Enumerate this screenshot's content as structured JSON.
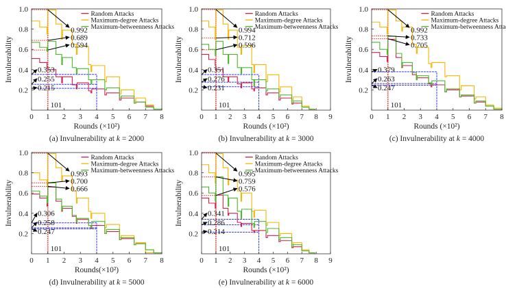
{
  "chart_data": [
    {
      "type": "line",
      "caption_prefix": "(a) Invulnerability at ",
      "caption_var": "k",
      "caption_value": " = 2000",
      "xlabel": "Rounds (×10²)",
      "ylabel": "Invulnerability",
      "xlim": [
        0,
        8
      ],
      "ylim": [
        0,
        1
      ],
      "xticks": [
        "0",
        "1",
        "2",
        "3",
        "4",
        "5",
        "6",
        "7",
        "8"
      ],
      "yticks": [
        "0.2",
        "0.4",
        "0.6",
        "0.8",
        "1.0"
      ],
      "grid": false,
      "legend_position": "top-right",
      "x": [
        0,
        0.5,
        0.95,
        1.0,
        1.5,
        1.85,
        1.9,
        2.5,
        2.75,
        2.8,
        3.5,
        3.65,
        3.7,
        4.5,
        4.6,
        5.4,
        5.5,
        6.3,
        6.4,
        7,
        7.5,
        8
      ],
      "series": [
        {
          "name": "Random Attacks",
          "color": "#d41f4a",
          "values": [
            0.51,
            0.47,
            0.42,
            0.4,
            0.33,
            0.27,
            0.33,
            0.25,
            0.21,
            0.27,
            0.19,
            0.17,
            0.21,
            0.15,
            0.17,
            0.1,
            0.12,
            0.07,
            0.08,
            0.04,
            0.01,
            0.02
          ]
        },
        {
          "name": "Maximum-degree Attacks",
          "color": "#f7b500",
          "values": [
            0.88,
            0.82,
            0.75,
            0.99,
            0.85,
            0.7,
            0.79,
            0.65,
            0.55,
            0.63,
            0.45,
            0.38,
            0.44,
            0.28,
            0.33,
            0.16,
            0.2,
            0.09,
            0.12,
            0.05,
            0.01,
            0.0
          ]
        },
        {
          "name": "Maximum-betweenness Attacks",
          "color": "#4cb82c",
          "values": [
            0.67,
            0.62,
            0.58,
            0.68,
            0.55,
            0.45,
            0.52,
            0.42,
            0.36,
            0.41,
            0.3,
            0.26,
            0.3,
            0.2,
            0.22,
            0.12,
            0.14,
            0.07,
            0.08,
            0.03,
            0.01,
            0.0
          ]
        }
      ],
      "annotations": {
        "top_values": [
          "0.992",
          "0.689",
          "0.594"
        ],
        "bottom_values": [
          "0.353",
          "0.255",
          "0.215"
        ],
        "marker_label": "101",
        "marker_x": 1,
        "window_x": 4
      }
    },
    {
      "type": "line",
      "caption_prefix": "(b) Invulnerability at ",
      "caption_var": "k",
      "caption_value": " = 3000",
      "xlabel": "Rounds (×10²)",
      "ylabel": "Invulnerability",
      "xlim": [
        0,
        9
      ],
      "ylim": [
        0,
        1
      ],
      "xticks": [
        "0",
        "1",
        "2",
        "3",
        "4",
        "5",
        "6",
        "7",
        "8",
        "9"
      ],
      "yticks": [
        "0.2",
        "0.4",
        "0.6",
        "0.8",
        "1.0"
      ],
      "grid": false,
      "legend_position": "top-right",
      "x": [
        0,
        0.5,
        0.95,
        1.0,
        1.5,
        1.85,
        1.9,
        2.5,
        2.75,
        2.8,
        3.5,
        3.65,
        3.7,
        4.5,
        4.6,
        5.4,
        5.5,
        6.3,
        6.4,
        7,
        7.5,
        7.9
      ],
      "series": [
        {
          "name": "Random Attacks",
          "color": "#d41f4a",
          "values": [
            0.55,
            0.5,
            0.44,
            0.4,
            0.33,
            0.28,
            0.33,
            0.26,
            0.22,
            0.27,
            0.21,
            0.19,
            0.22,
            0.15,
            0.17,
            0.1,
            0.12,
            0.06,
            0.07,
            0.03,
            0.01,
            0.0
          ]
        },
        {
          "name": "Maximum-degree Attacks",
          "color": "#f7b500",
          "values": [
            0.88,
            0.82,
            0.7,
            0.99,
            0.85,
            0.7,
            0.79,
            0.62,
            0.55,
            0.64,
            0.45,
            0.37,
            0.45,
            0.28,
            0.35,
            0.18,
            0.23,
            0.1,
            0.13,
            0.04,
            0.01,
            0.0
          ]
        },
        {
          "name": "Maximum-betweenness Attacks",
          "color": "#4cb82c",
          "values": [
            0.65,
            0.6,
            0.54,
            0.68,
            0.55,
            0.46,
            0.55,
            0.42,
            0.36,
            0.42,
            0.3,
            0.24,
            0.3,
            0.19,
            0.21,
            0.13,
            0.15,
            0.07,
            0.09,
            0.03,
            0.01,
            0.0
          ]
        }
      ],
      "annotations": {
        "top_values": [
          "0.994",
          "0.712",
          "0.596"
        ],
        "bottom_values": [
          "0.351",
          "0.276",
          "0.231"
        ],
        "marker_label": "101",
        "marker_x": 1,
        "window_x": 4
      }
    },
    {
      "type": "line",
      "caption_prefix": "(c) Invulnerability at ",
      "caption_var": "k",
      "caption_value": " = 4000",
      "xlabel": "Rounds (×10²)",
      "ylabel": "Invulnerability",
      "xlim": [
        0,
        8
      ],
      "ylim": [
        0,
        1
      ],
      "xticks": [
        "0",
        "1",
        "2",
        "3",
        "4",
        "5",
        "6",
        "7",
        "8"
      ],
      "yticks": [
        "0.2",
        "0.4",
        "0.6",
        "0.8",
        "1.0"
      ],
      "grid": false,
      "legend_position": "top-right",
      "x": [
        0,
        0.5,
        0.95,
        1.0,
        1.5,
        1.85,
        1.9,
        2.5,
        2.75,
        2.8,
        3.5,
        3.65,
        3.7,
        4.5,
        4.6,
        5.4,
        5.5,
        6.3,
        6.4,
        7,
        7.5,
        8
      ],
      "series": [
        {
          "name": "Random Attacks",
          "color": "#d41f4a",
          "values": [
            0.57,
            0.53,
            0.48,
            0.7,
            0.52,
            0.42,
            0.44,
            0.35,
            0.3,
            0.32,
            0.26,
            0.23,
            0.25,
            0.18,
            0.2,
            0.13,
            0.14,
            0.07,
            0.08,
            0.04,
            0.01,
            0.0
          ]
        },
        {
          "name": "Maximum-degree Attacks",
          "color": "#f7b500",
          "values": [
            0.87,
            0.82,
            0.75,
            0.99,
            0.88,
            0.78,
            0.82,
            0.65,
            0.56,
            0.62,
            0.46,
            0.42,
            0.47,
            0.33,
            0.34,
            0.2,
            0.24,
            0.11,
            0.13,
            0.05,
            0.02,
            0.0
          ]
        },
        {
          "name": "Maximum-betweenness Attacks",
          "color": "#4cb82c",
          "values": [
            0.67,
            0.6,
            0.55,
            0.73,
            0.56,
            0.43,
            0.47,
            0.37,
            0.3,
            0.34,
            0.27,
            0.25,
            0.29,
            0.18,
            0.21,
            0.13,
            0.15,
            0.07,
            0.09,
            0.04,
            0.01,
            0.0
          ]
        }
      ],
      "annotations": {
        "top_values": [
          "0.992",
          "0.733",
          "0.705"
        ],
        "bottom_values": [
          "0.379",
          "0.263",
          "0.247"
        ],
        "marker_label": "101",
        "marker_x": 1,
        "window_x": 4
      }
    },
    {
      "type": "line",
      "caption_prefix": "(d) Invulnerability at ",
      "caption_var": "k",
      "caption_value": " = 5000",
      "xlabel": "Rounds(×10²)",
      "ylabel": "Invulnerability",
      "xlim": [
        0,
        8
      ],
      "ylim": [
        0,
        1
      ],
      "xticks": [
        "0",
        "1",
        "2",
        "3",
        "4",
        "5",
        "6",
        "7",
        "8"
      ],
      "yticks": [
        "0.2",
        "0.4",
        "0.6",
        "0.8",
        "1.0"
      ],
      "grid": false,
      "legend_position": "top-right",
      "x": [
        0,
        0.5,
        0.95,
        1.0,
        1.5,
        1.85,
        1.9,
        2.5,
        2.75,
        2.8,
        3.5,
        3.65,
        3.7,
        4.5,
        4.6,
        5.4,
        5.5,
        6.3,
        6.4,
        7,
        7.5,
        8
      ],
      "series": [
        {
          "name": "Random Attacks",
          "color": "#d41f4a",
          "values": [
            0.59,
            0.55,
            0.47,
            0.66,
            0.52,
            0.42,
            0.45,
            0.37,
            0.3,
            0.34,
            0.28,
            0.25,
            0.28,
            0.2,
            0.22,
            0.14,
            0.15,
            0.09,
            0.1,
            0.04,
            0.01,
            0.0
          ]
        },
        {
          "name": "Maximum-degree Attacks",
          "color": "#f7b500",
          "values": [
            0.8,
            0.73,
            0.68,
            0.99,
            0.85,
            0.72,
            0.77,
            0.62,
            0.5,
            0.55,
            0.42,
            0.35,
            0.4,
            0.26,
            0.29,
            0.16,
            0.18,
            0.09,
            0.11,
            0.01,
            0.01,
            0.0
          ]
        },
        {
          "name": "Maximum-betweenness Attacks",
          "color": "#4cb82c",
          "values": [
            0.62,
            0.57,
            0.5,
            0.7,
            0.54,
            0.43,
            0.47,
            0.38,
            0.31,
            0.35,
            0.28,
            0.26,
            0.32,
            0.2,
            0.24,
            0.14,
            0.16,
            0.09,
            0.1,
            0.04,
            0.01,
            0.0
          ]
        }
      ],
      "annotations": {
        "top_values": [
          "0.993",
          "0.700",
          "0.666"
        ],
        "bottom_values": [
          "0.306",
          "0.258",
          "0.247"
        ],
        "marker_label": "101",
        "marker_x": 1,
        "window_x": 4
      }
    },
    {
      "type": "line",
      "caption_prefix": "(e) Invulnerability at ",
      "caption_var": "k",
      "caption_value": " = 6000",
      "xlabel": "Rounds (×10²)",
      "ylabel": "Invulnerability",
      "xlim": [
        0,
        9
      ],
      "ylim": [
        0,
        1
      ],
      "xticks": [
        "0",
        "1",
        "2",
        "3",
        "4",
        "5",
        "6",
        "7",
        "8",
        "9"
      ],
      "yticks": [
        "0.2",
        "0.4",
        "0.6",
        "0.8",
        "1.0"
      ],
      "grid": false,
      "legend_position": "top-right",
      "x": [
        0,
        0.5,
        0.95,
        1.0,
        1.5,
        1.85,
        1.9,
        2.5,
        2.75,
        2.8,
        3.5,
        3.65,
        3.7,
        4.5,
        4.6,
        5.4,
        5.5,
        6.3,
        6.4,
        7,
        7.5,
        7.9
      ],
      "series": [
        {
          "name": "Random Attacks",
          "color": "#d41f4a",
          "values": [
            0.55,
            0.5,
            0.45,
            0.58,
            0.45,
            0.38,
            0.4,
            0.31,
            0.27,
            0.3,
            0.23,
            0.21,
            0.23,
            0.16,
            0.18,
            0.12,
            0.13,
            0.06,
            0.07,
            0.03,
            0.01,
            0.0
          ]
        },
        {
          "name": "Maximum-degree Attacks",
          "color": "#f7b500",
          "values": [
            0.88,
            0.8,
            0.7,
            0.99,
            0.85,
            0.68,
            0.73,
            0.62,
            0.52,
            0.6,
            0.42,
            0.36,
            0.43,
            0.28,
            0.31,
            0.18,
            0.2,
            0.09,
            0.11,
            0.04,
            0.01,
            0.0
          ]
        },
        {
          "name": "Maximum-betweenness Attacks",
          "color": "#4cb82c",
          "values": [
            0.66,
            0.6,
            0.52,
            0.76,
            0.58,
            0.47,
            0.55,
            0.42,
            0.35,
            0.44,
            0.3,
            0.26,
            0.32,
            0.21,
            0.25,
            0.14,
            0.16,
            0.07,
            0.09,
            0.03,
            0.01,
            0.0
          ]
        }
      ],
      "annotations": {
        "top_values": [
          "0.995",
          "0.759",
          "0.576"
        ],
        "bottom_values": [
          "0.341",
          "0.286",
          "0.214"
        ],
        "marker_label": "101",
        "marker_x": 1,
        "window_x": 4
      }
    }
  ]
}
